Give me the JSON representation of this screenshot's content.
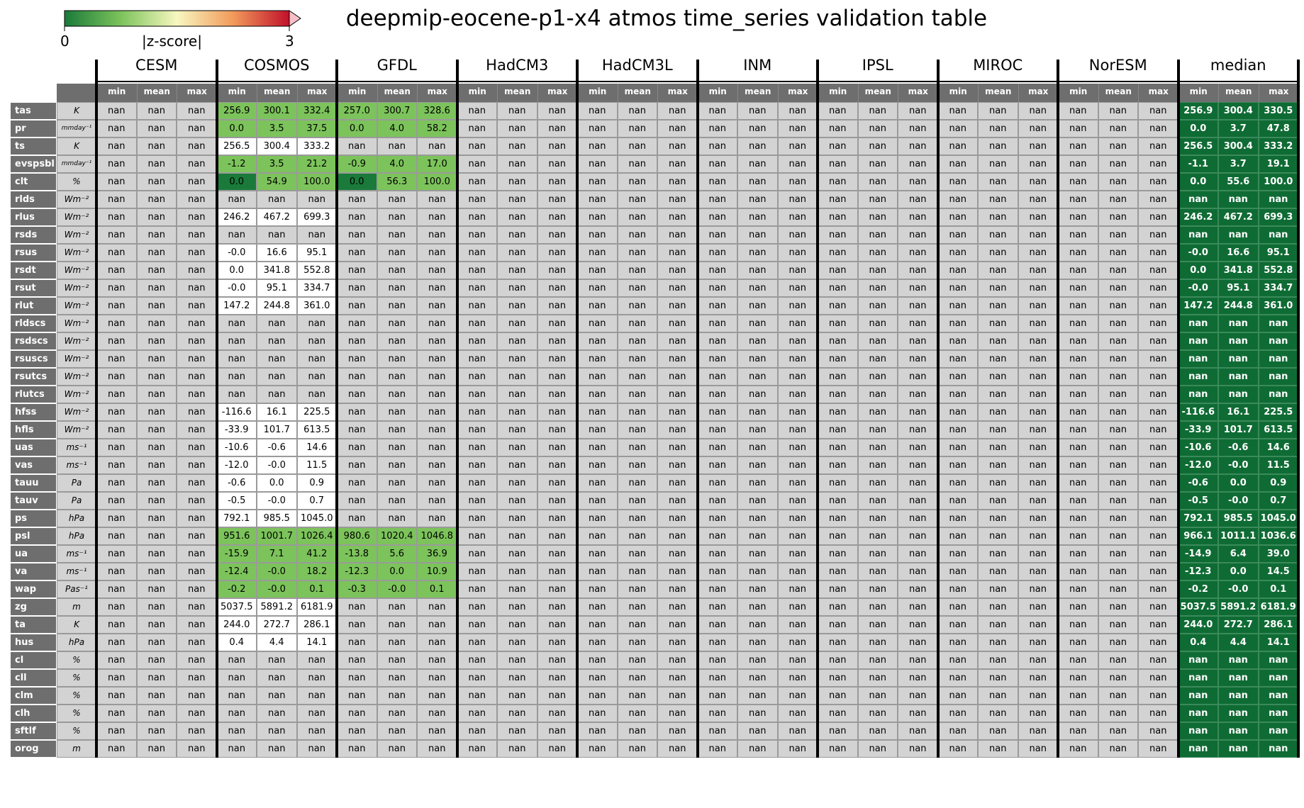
{
  "title": "deepmip-eocene-p1-x4 atmos time_series validation table",
  "colorbar": {
    "min_label": "0",
    "max_label": "3",
    "center_label": "|z-score|",
    "colors": [
      "#1a7a3a",
      "#7cc35b",
      "#f7f7c0",
      "#f29a5b",
      "#c0102a"
    ]
  },
  "columns": {
    "models": [
      "CESM",
      "COSMOS",
      "GFDL",
      "HadCM3",
      "HadCM3L",
      "INM",
      "IPSL",
      "MIROC",
      "NorESM",
      "median"
    ],
    "stats": [
      "min",
      "mean",
      "max"
    ]
  },
  "chart_data": {
    "type": "table",
    "title": "deepmip-eocene-p1-x4 atmos time_series validation table",
    "colorbar_range": [
      0,
      3
    ],
    "colorbar_label": "|z-score|",
    "models": [
      "CESM",
      "COSMOS",
      "GFDL",
      "HadCM3",
      "HadCM3L",
      "INM",
      "IPSL",
      "MIROC",
      "NorESM",
      "median"
    ],
    "stats": [
      "min",
      "mean",
      "max"
    ],
    "rows": [
      {
        "var": "tas",
        "unit": "K",
        "COSMOS": [
          "256.9",
          "300.1",
          "332.4"
        ],
        "COSMOS_color": "#7cc35b",
        "GFDL": [
          "257.0",
          "300.7",
          "328.6"
        ],
        "GFDL_color": "#7cc35b",
        "median": [
          "256.9",
          "300.4",
          "330.5"
        ]
      },
      {
        "var": "pr",
        "unit": "mmday⁻¹",
        "small": true,
        "COSMOS": [
          "0.0",
          "3.5",
          "37.5"
        ],
        "COSMOS_color": "#7cc35b",
        "GFDL": [
          "0.0",
          "4.0",
          "58.2"
        ],
        "GFDL_color": "#7cc35b",
        "median": [
          "0.0",
          "3.7",
          "47.8"
        ]
      },
      {
        "var": "ts",
        "unit": "K",
        "COSMOS": [
          "256.5",
          "300.4",
          "333.2"
        ],
        "COSMOS_color": "#ffffff",
        "median": [
          "256.5",
          "300.4",
          "333.2"
        ]
      },
      {
        "var": "evspsbl",
        "unit": "mmday⁻¹",
        "small": true,
        "COSMOS": [
          "-1.2",
          "3.5",
          "21.2"
        ],
        "COSMOS_color": "#7cc35b",
        "GFDL": [
          "-0.9",
          "4.0",
          "17.0"
        ],
        "GFDL_color": "#7cc35b",
        "median": [
          "-1.1",
          "3.7",
          "19.1"
        ]
      },
      {
        "var": "clt",
        "unit": "%",
        "COSMOS": [
          "0.0",
          "54.9",
          "100.0"
        ],
        "COSMOS_color": "#7cc35b",
        "COSMOS_first_color": "#1a7a3a",
        "GFDL": [
          "0.0",
          "56.3",
          "100.0"
        ],
        "GFDL_color": "#7cc35b",
        "GFDL_first_color": "#1a7a3a",
        "median": [
          "0.0",
          "55.6",
          "100.0"
        ]
      },
      {
        "var": "rlds",
        "unit": "Wm⁻²",
        "median": [
          "nan",
          "nan",
          "nan"
        ]
      },
      {
        "var": "rlus",
        "unit": "Wm⁻²",
        "COSMOS": [
          "246.2",
          "467.2",
          "699.3"
        ],
        "COSMOS_color": "#ffffff",
        "median": [
          "246.2",
          "467.2",
          "699.3"
        ]
      },
      {
        "var": "rsds",
        "unit": "Wm⁻²",
        "median": [
          "nan",
          "nan",
          "nan"
        ]
      },
      {
        "var": "rsus",
        "unit": "Wm⁻²",
        "COSMOS": [
          "-0.0",
          "16.6",
          "95.1"
        ],
        "COSMOS_color": "#ffffff",
        "median": [
          "-0.0",
          "16.6",
          "95.1"
        ]
      },
      {
        "var": "rsdt",
        "unit": "Wm⁻²",
        "COSMOS": [
          "0.0",
          "341.8",
          "552.8"
        ],
        "COSMOS_color": "#ffffff",
        "median": [
          "0.0",
          "341.8",
          "552.8"
        ]
      },
      {
        "var": "rsut",
        "unit": "Wm⁻²",
        "COSMOS": [
          "-0.0",
          "95.1",
          "334.7"
        ],
        "COSMOS_color": "#ffffff",
        "median": [
          "-0.0",
          "95.1",
          "334.7"
        ]
      },
      {
        "var": "rlut",
        "unit": "Wm⁻²",
        "COSMOS": [
          "147.2",
          "244.8",
          "361.0"
        ],
        "COSMOS_color": "#ffffff",
        "median": [
          "147.2",
          "244.8",
          "361.0"
        ]
      },
      {
        "var": "rldscs",
        "unit": "Wm⁻²",
        "median": [
          "nan",
          "nan",
          "nan"
        ]
      },
      {
        "var": "rsdscs",
        "unit": "Wm⁻²",
        "median": [
          "nan",
          "nan",
          "nan"
        ]
      },
      {
        "var": "rsuscs",
        "unit": "Wm⁻²",
        "median": [
          "nan",
          "nan",
          "nan"
        ]
      },
      {
        "var": "rsutcs",
        "unit": "Wm⁻²",
        "median": [
          "nan",
          "nan",
          "nan"
        ]
      },
      {
        "var": "rlutcs",
        "unit": "Wm⁻²",
        "median": [
          "nan",
          "nan",
          "nan"
        ]
      },
      {
        "var": "hfss",
        "unit": "Wm⁻²",
        "COSMOS": [
          "-116.6",
          "16.1",
          "225.5"
        ],
        "COSMOS_color": "#ffffff",
        "median": [
          "-116.6",
          "16.1",
          "225.5"
        ]
      },
      {
        "var": "hfls",
        "unit": "Wm⁻²",
        "COSMOS": [
          "-33.9",
          "101.7",
          "613.5"
        ],
        "COSMOS_color": "#ffffff",
        "median": [
          "-33.9",
          "101.7",
          "613.5"
        ]
      },
      {
        "var": "uas",
        "unit": "ms⁻¹",
        "COSMOS": [
          "-10.6",
          "-0.6",
          "14.6"
        ],
        "COSMOS_color": "#ffffff",
        "median": [
          "-10.6",
          "-0.6",
          "14.6"
        ]
      },
      {
        "var": "vas",
        "unit": "ms⁻¹",
        "COSMOS": [
          "-12.0",
          "-0.0",
          "11.5"
        ],
        "COSMOS_color": "#ffffff",
        "median": [
          "-12.0",
          "-0.0",
          "11.5"
        ]
      },
      {
        "var": "tauu",
        "unit": "Pa",
        "COSMOS": [
          "-0.6",
          "0.0",
          "0.9"
        ],
        "COSMOS_color": "#ffffff",
        "median": [
          "-0.6",
          "0.0",
          "0.9"
        ]
      },
      {
        "var": "tauv",
        "unit": "Pa",
        "COSMOS": [
          "-0.5",
          "-0.0",
          "0.7"
        ],
        "COSMOS_color": "#ffffff",
        "median": [
          "-0.5",
          "-0.0",
          "0.7"
        ]
      },
      {
        "var": "ps",
        "unit": "hPa",
        "COSMOS": [
          "792.1",
          "985.5",
          "1045.0"
        ],
        "COSMOS_color": "#ffffff",
        "median": [
          "792.1",
          "985.5",
          "1045.0"
        ]
      },
      {
        "var": "psl",
        "unit": "hPa",
        "COSMOS": [
          "951.6",
          "1001.7",
          "1026.4"
        ],
        "COSMOS_color": "#7cc35b",
        "GFDL": [
          "980.6",
          "1020.4",
          "1046.8"
        ],
        "GFDL_color": "#7cc35b",
        "median": [
          "966.1",
          "1011.1",
          "1036.6"
        ]
      },
      {
        "var": "ua",
        "unit": "ms⁻¹",
        "COSMOS": [
          "-15.9",
          "7.1",
          "41.2"
        ],
        "COSMOS_color": "#7cc35b",
        "GFDL": [
          "-13.8",
          "5.6",
          "36.9"
        ],
        "GFDL_color": "#7cc35b",
        "median": [
          "-14.9",
          "6.4",
          "39.0"
        ]
      },
      {
        "var": "va",
        "unit": "ms⁻¹",
        "COSMOS": [
          "-12.4",
          "-0.0",
          "18.2"
        ],
        "COSMOS_color": "#7cc35b",
        "GFDL": [
          "-12.3",
          "0.0",
          "10.9"
        ],
        "GFDL_color": "#7cc35b",
        "median": [
          "-12.3",
          "0.0",
          "14.5"
        ]
      },
      {
        "var": "wap",
        "unit": "Pas⁻¹",
        "COSMOS": [
          "-0.2",
          "-0.0",
          "0.1"
        ],
        "COSMOS_color": "#7cc35b",
        "GFDL": [
          "-0.3",
          "-0.0",
          "0.1"
        ],
        "GFDL_color": "#7cc35b",
        "median": [
          "-0.2",
          "-0.0",
          "0.1"
        ]
      },
      {
        "var": "zg",
        "unit": "m",
        "COSMOS": [
          "5037.5",
          "5891.2",
          "6181.9"
        ],
        "COSMOS_color": "#ffffff",
        "median": [
          "5037.5",
          "5891.2",
          "6181.9"
        ]
      },
      {
        "var": "ta",
        "unit": "K",
        "COSMOS": [
          "244.0",
          "272.7",
          "286.1"
        ],
        "COSMOS_color": "#ffffff",
        "median": [
          "244.0",
          "272.7",
          "286.1"
        ]
      },
      {
        "var": "hus",
        "unit": "hPa",
        "COSMOS": [
          "0.4",
          "4.4",
          "14.1"
        ],
        "COSMOS_color": "#ffffff",
        "median": [
          "0.4",
          "4.4",
          "14.1"
        ]
      },
      {
        "var": "cl",
        "unit": "%",
        "median": [
          "nan",
          "nan",
          "nan"
        ]
      },
      {
        "var": "cll",
        "unit": "%",
        "median": [
          "nan",
          "nan",
          "nan"
        ]
      },
      {
        "var": "clm",
        "unit": "%",
        "median": [
          "nan",
          "nan",
          "nan"
        ]
      },
      {
        "var": "clh",
        "unit": "%",
        "median": [
          "nan",
          "nan",
          "nan"
        ]
      },
      {
        "var": "sftlf",
        "unit": "%",
        "median": [
          "nan",
          "nan",
          "nan"
        ]
      },
      {
        "var": "orog",
        "unit": "m",
        "median": [
          "nan",
          "nan",
          "nan"
        ]
      }
    ],
    "missing_value": "nan",
    "missing_color": "#d3d3d3",
    "median_color": "#0f6b34"
  }
}
